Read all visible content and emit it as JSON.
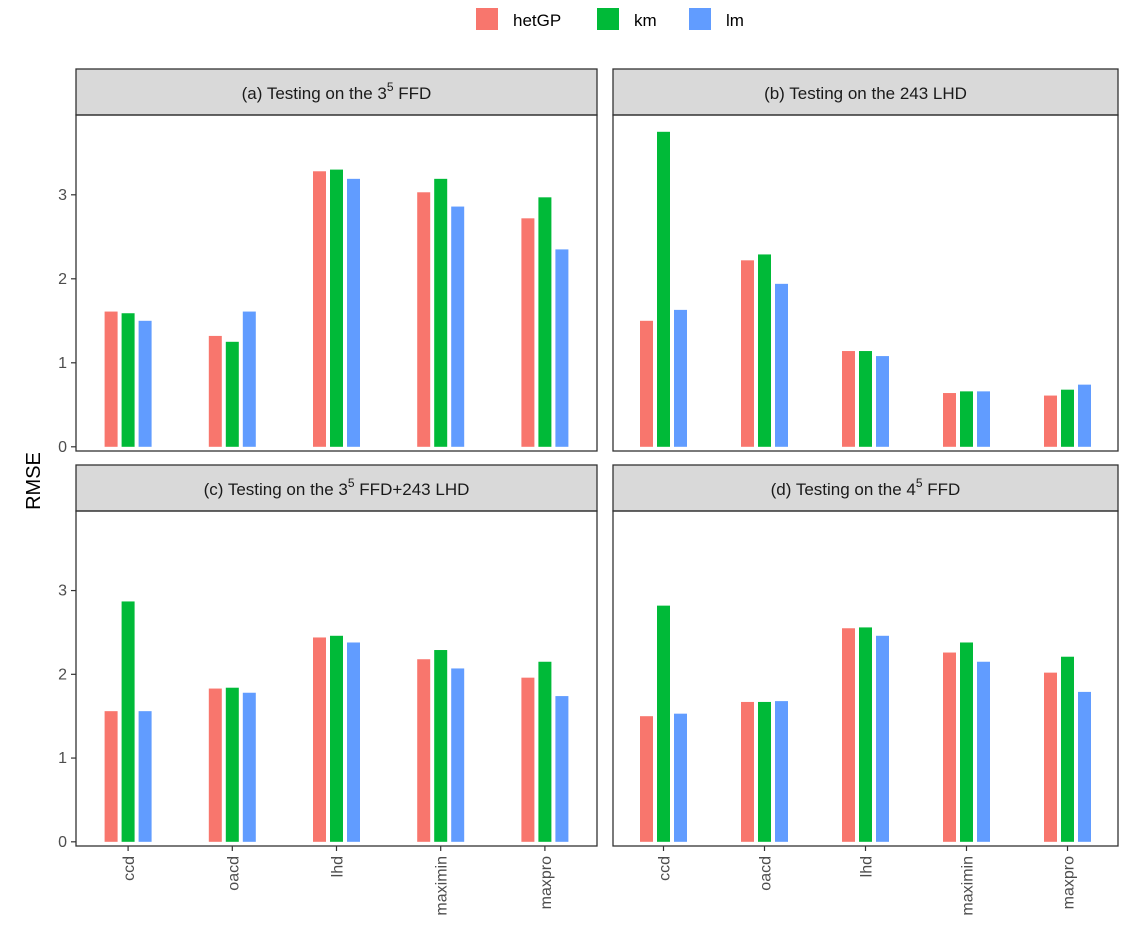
{
  "chart_data": {
    "type": "bar",
    "ylabel": "RMSE",
    "xlabel": "",
    "ylim": [
      -0.05,
      3.95
    ],
    "yticks": [
      0,
      1,
      2,
      3
    ],
    "categories": [
      "ccd",
      "oacd",
      "lhd",
      "maximin",
      "maxpro"
    ],
    "legend": {
      "position": "top",
      "items": [
        {
          "name": "hetGP",
          "color": "#F8766D"
        },
        {
          "name": "km",
          "color": "#00BA38"
        },
        {
          "name": "lm",
          "color": "#619CFF"
        }
      ]
    },
    "grid": false,
    "panels": [
      {
        "title_pre": "(a) Testing on the 3",
        "title_sup": "5",
        "title_post": " FFD",
        "series": [
          {
            "name": "hetGP",
            "values": [
              1.61,
              1.32,
              3.28,
              3.03,
              2.72
            ]
          },
          {
            "name": "km",
            "values": [
              1.59,
              1.25,
              3.3,
              3.19,
              2.97
            ]
          },
          {
            "name": "lm",
            "values": [
              1.5,
              1.61,
              3.19,
              2.86,
              2.35
            ]
          }
        ]
      },
      {
        "title_pre": "(b) Testing on the 243 LHD",
        "title_sup": "",
        "title_post": "",
        "series": [
          {
            "name": "hetGP",
            "values": [
              1.5,
              2.22,
              1.14,
              0.64,
              0.61
            ]
          },
          {
            "name": "km",
            "values": [
              3.75,
              2.29,
              1.14,
              0.66,
              0.68
            ]
          },
          {
            "name": "lm",
            "values": [
              1.63,
              1.94,
              1.08,
              0.66,
              0.74
            ]
          }
        ]
      },
      {
        "title_pre": "(c) Testing on the 3",
        "title_sup": "5",
        "title_post": " FFD+243 LHD",
        "series": [
          {
            "name": "hetGP",
            "values": [
              1.56,
              1.83,
              2.44,
              2.18,
              1.96
            ]
          },
          {
            "name": "km",
            "values": [
              2.87,
              1.84,
              2.46,
              2.29,
              2.15
            ]
          },
          {
            "name": "lm",
            "values": [
              1.56,
              1.78,
              2.38,
              2.07,
              1.74
            ]
          }
        ]
      },
      {
        "title_pre": "(d) Testing on the 4",
        "title_sup": "5",
        "title_post": " FFD",
        "series": [
          {
            "name": "hetGP",
            "values": [
              1.5,
              1.67,
              2.55,
              2.26,
              2.02
            ]
          },
          {
            "name": "km",
            "values": [
              2.82,
              1.67,
              2.56,
              2.38,
              2.21
            ]
          },
          {
            "name": "lm",
            "values": [
              1.53,
              1.68,
              2.46,
              2.15,
              1.79
            ]
          }
        ]
      }
    ]
  }
}
